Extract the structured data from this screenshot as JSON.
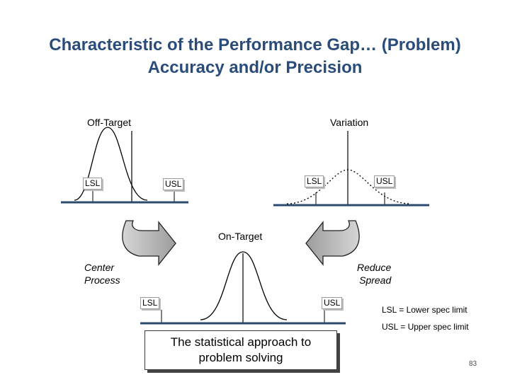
{
  "title": {
    "line1": "Characteristic of the Performance Gap… (Problem)",
    "line2": "Accuracy and/or Precision"
  },
  "panels": {
    "off_target": {
      "label": "Off-Target",
      "lsl": "LSL",
      "usl": "USL"
    },
    "variation": {
      "label": "Variation",
      "lsl": "LSL",
      "usl": "USL"
    },
    "on_target": {
      "label": "On-Target",
      "lsl": "LSL",
      "usl": "USL"
    }
  },
  "arrows": {
    "left_label_line1": "Center",
    "left_label_line2": "Process",
    "right_label_line1": "Reduce",
    "right_label_line2": "Spread"
  },
  "callout": {
    "line1": "The statistical approach to",
    "line2": "problem solving"
  },
  "legend": {
    "lsl": "LSL = Lower spec limit",
    "usl": "USL = Upper spec limit"
  },
  "page_number": "83",
  "colors": {
    "title": "#2a4c7a",
    "baseline": "#2b4a6e",
    "arrow_fill": "#b8b8b8"
  }
}
